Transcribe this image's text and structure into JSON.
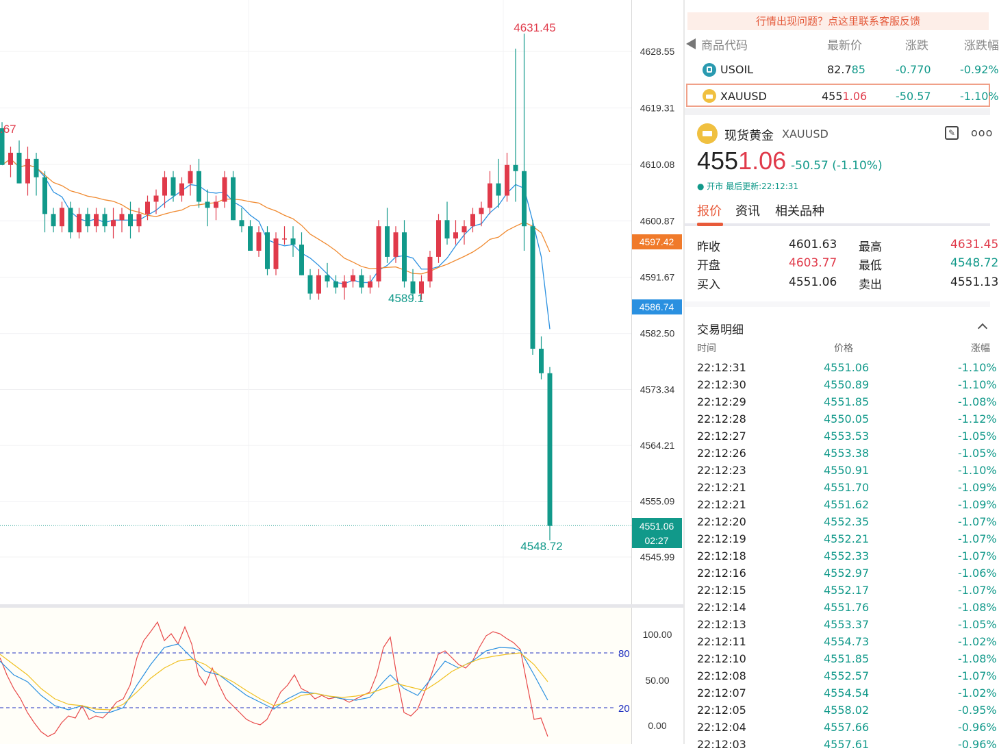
{
  "chart": {
    "price_ticks": [
      "4628.55",
      "4619.31",
      "4610.08",
      "4600.87",
      "4591.67",
      "4582.50",
      "4573.34",
      "4564.21",
      "4555.09",
      "4545.99"
    ],
    "high_marker": "4631.45",
    "low_marker": "4548.72",
    "mid_low_marker": "4589.1",
    "left_marker": ".67",
    "orange_tag": "4597.42",
    "blue_tag": "4586.74",
    "last_price_tag": "4551.06",
    "countdown": "02:27",
    "colors": {
      "up": "#e03a4a",
      "down": "#11998a",
      "ma_fast": "#2a90e0",
      "ma_slow": "#f08a30"
    },
    "candles": [
      [
        4616,
        4617,
        4610,
        4610
      ],
      [
        4610,
        4613,
        4608,
        4612
      ],
      [
        4612,
        4614,
        4607,
        4607
      ],
      [
        4607,
        4613,
        4605,
        4611
      ],
      [
        4611,
        4612,
        4605,
        4608
      ],
      [
        4608,
        4609,
        4599,
        4602
      ],
      [
        4602,
        4603,
        4599,
        4600
      ],
      [
        4600,
        4604,
        4599,
        4603
      ],
      [
        4603,
        4604,
        4598,
        4599
      ],
      [
        4599,
        4603,
        4598,
        4602
      ],
      [
        4602,
        4603,
        4599,
        4600
      ],
      [
        4600,
        4603,
        4599,
        4602
      ],
      [
        4602,
        4603,
        4599,
        4600
      ],
      [
        4600,
        4603,
        4598,
        4601
      ],
      [
        4601,
        4603,
        4599,
        4602
      ],
      [
        4602,
        4604,
        4598,
        4600
      ],
      [
        4600,
        4603,
        4599,
        4602
      ],
      [
        4602,
        4605,
        4601,
        4604
      ],
      [
        4604,
        4606,
        4602,
        4605
      ],
      [
        4605,
        4609,
        4603,
        4608
      ],
      [
        4608,
        4609,
        4604,
        4605
      ],
      [
        4605,
        4608,
        4604,
        4607
      ],
      [
        4607,
        4610,
        4605,
        4609
      ],
      [
        4609,
        4611,
        4603,
        4604
      ],
      [
        4604,
        4606,
        4600,
        4603
      ],
      [
        4603,
        4605,
        4601,
        4604
      ],
      [
        4604,
        4609,
        4603,
        4608
      ],
      [
        4608,
        4609,
        4601,
        4601
      ],
      [
        4601,
        4603,
        4599,
        4600
      ],
      [
        4600,
        4601,
        4596,
        4596
      ],
      [
        4596,
        4600,
        4595,
        4599
      ],
      [
        4599,
        4600,
        4592,
        4593
      ],
      [
        4593,
        4599,
        4592,
        4598
      ],
      [
        4598,
        4600,
        4597,
        4598
      ],
      [
        4598,
        4600,
        4595,
        4597
      ],
      [
        4597,
        4599,
        4592,
        4592
      ],
      [
        4592,
        4593,
        4588,
        4589
      ],
      [
        4589,
        4593,
        4588,
        4592
      ],
      [
        4592,
        4594,
        4590,
        4591
      ],
      [
        4591,
        4592,
        4589,
        4590
      ],
      [
        4590,
        4592,
        4588,
        4591
      ],
      [
        4591,
        4593,
        4590,
        4592
      ],
      [
        4592,
        4593,
        4589,
        4590
      ],
      [
        4590,
        4592,
        4589,
        4591
      ],
      [
        4591,
        4601,
        4590,
        4600
      ],
      [
        4600,
        4603,
        4594,
        4595
      ],
      [
        4595,
        4600,
        4594,
        4599
      ],
      [
        4599,
        4601,
        4590,
        4591
      ],
      [
        4591,
        4593,
        4588,
        4589
      ],
      [
        4589,
        4592,
        4588,
        4591
      ],
      [
        4591,
        4596,
        4590,
        4595
      ],
      [
        4595,
        4602,
        4594,
        4601
      ],
      [
        4601,
        4604,
        4597,
        4598
      ],
      [
        4598,
        4601,
        4597,
        4599
      ],
      [
        4599,
        4601,
        4597,
        4600
      ],
      [
        4600,
        4603,
        4599,
        4602
      ],
      [
        4602,
        4604,
        4600,
        4603
      ],
      [
        4603,
        4609,
        4602,
        4607
      ],
      [
        4607,
        4611,
        4603,
        4605
      ],
      [
        4605,
        4612,
        4604,
        4610
      ],
      [
        4610,
        4629,
        4604,
        4609
      ],
      [
        4609,
        4631.45,
        4596,
        4600
      ],
      [
        4600,
        4601,
        4579,
        4580
      ],
      [
        4580,
        4582,
        4575,
        4576
      ],
      [
        4576,
        4577,
        4548.72,
        4551.06
      ]
    ],
    "stoch_ticks": [
      "100.00",
      "50.00",
      "0.00"
    ],
    "stoch_levels": [
      "80",
      "20"
    ]
  },
  "watchlist": {
    "banner": "行情出现问题？点这里联系客服反馈",
    "headers": {
      "code": "商品代码",
      "last": "最新价",
      "change": "涨跌",
      "pct": "涨跌幅"
    },
    "rows": [
      {
        "symbol": "USOIL",
        "price_main": "82.7",
        "price_tail": "85",
        "change": "-0.770",
        "pct": "-0.92%"
      },
      {
        "symbol": "XAUUSD",
        "price_main": "455",
        "price_tail": "1.06",
        "change": "-50.57",
        "pct": "-1.10%"
      }
    ]
  },
  "quote": {
    "title": "现货黄金",
    "symbol": "XAUUSD",
    "price_main": "455",
    "price_tail": "1.06",
    "change": "-50.57",
    "pct": "(-1.10%)",
    "status": "● 开市 最后更新:22:12:31",
    "tabs": [
      "报价",
      "资讯",
      "相关品种"
    ],
    "stats": {
      "prev_close_label": "昨收",
      "prev_close": "4601.63",
      "high_label": "最高",
      "high": "4631.45",
      "open_label": "开盘",
      "open": "4603.77",
      "low_label": "最低",
      "low": "4548.72",
      "bid_label": "买入",
      "bid": "4551.06",
      "ask_label": "卖出",
      "ask": "4551.13"
    }
  },
  "trades": {
    "title": "交易明细",
    "headers": {
      "time": "时间",
      "price": "价格",
      "pct": "涨幅"
    },
    "rows": [
      {
        "time": "22:12:31",
        "price": "4551.06",
        "pct": "-1.10%"
      },
      {
        "time": "22:12:30",
        "price": "4550.89",
        "pct": "-1.10%"
      },
      {
        "time": "22:12:29",
        "price": "4551.85",
        "pct": "-1.08%"
      },
      {
        "time": "22:12:28",
        "price": "4550.05",
        "pct": "-1.12%"
      },
      {
        "time": "22:12:27",
        "price": "4553.53",
        "pct": "-1.05%"
      },
      {
        "time": "22:12:26",
        "price": "4553.38",
        "pct": "-1.05%"
      },
      {
        "time": "22:12:23",
        "price": "4550.91",
        "pct": "-1.10%"
      },
      {
        "time": "22:12:21",
        "price": "4551.70",
        "pct": "-1.09%"
      },
      {
        "time": "22:12:21",
        "price": "4551.62",
        "pct": "-1.09%"
      },
      {
        "time": "22:12:20",
        "price": "4552.35",
        "pct": "-1.07%"
      },
      {
        "time": "22:12:19",
        "price": "4552.21",
        "pct": "-1.07%"
      },
      {
        "time": "22:12:18",
        "price": "4552.33",
        "pct": "-1.07%"
      },
      {
        "time": "22:12:16",
        "price": "4552.97",
        "pct": "-1.06%"
      },
      {
        "time": "22:12:15",
        "price": "4552.17",
        "pct": "-1.07%"
      },
      {
        "time": "22:12:14",
        "price": "4551.76",
        "pct": "-1.08%"
      },
      {
        "time": "22:12:13",
        "price": "4553.37",
        "pct": "-1.05%"
      },
      {
        "time": "22:12:11",
        "price": "4554.73",
        "pct": "-1.02%"
      },
      {
        "time": "22:12:10",
        "price": "4551.85",
        "pct": "-1.08%"
      },
      {
        "time": "22:12:08",
        "price": "4552.57",
        "pct": "-1.07%"
      },
      {
        "time": "22:12:07",
        "price": "4554.54",
        "pct": "-1.02%"
      },
      {
        "time": "22:12:05",
        "price": "4558.02",
        "pct": "-0.95%"
      },
      {
        "time": "22:12:04",
        "price": "4557.66",
        "pct": "-0.96%"
      },
      {
        "time": "22:12:03",
        "price": "4557.61",
        "pct": "-0.96%"
      }
    ]
  }
}
